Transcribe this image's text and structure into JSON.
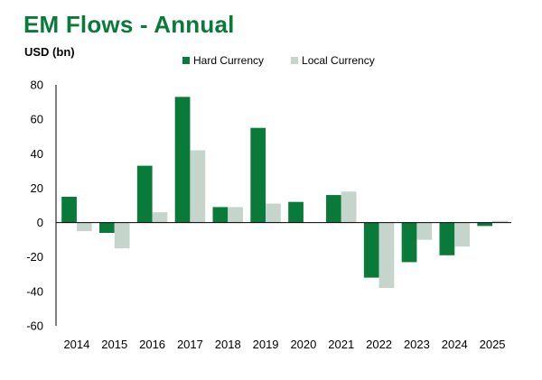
{
  "chart_data": {
    "type": "bar",
    "title": "EM Flows - Annual",
    "ylabel": "USD (bn)",
    "xlabel": "",
    "categories": [
      "2014",
      "2015",
      "2016",
      "2017",
      "2018",
      "2019",
      "2020",
      "2021",
      "2022",
      "2023",
      "2024",
      "2025"
    ],
    "series": [
      {
        "name": "Hard Currency",
        "color": "#0a7a3a",
        "values": [
          15,
          -6,
          33,
          73,
          9,
          55,
          12,
          16,
          -32,
          -23,
          -19,
          -2
        ]
      },
      {
        "name": "Local Currency",
        "color": "#c5d5cb",
        "values": [
          -5,
          -15,
          6,
          42,
          9,
          11,
          0,
          18,
          -38,
          -10,
          -14,
          1
        ]
      }
    ],
    "ylim": [
      -60,
      80
    ],
    "yticks": [
      80,
      60,
      40,
      20,
      0,
      -20,
      -40,
      -60
    ],
    "legend": "top",
    "grid": false
  }
}
